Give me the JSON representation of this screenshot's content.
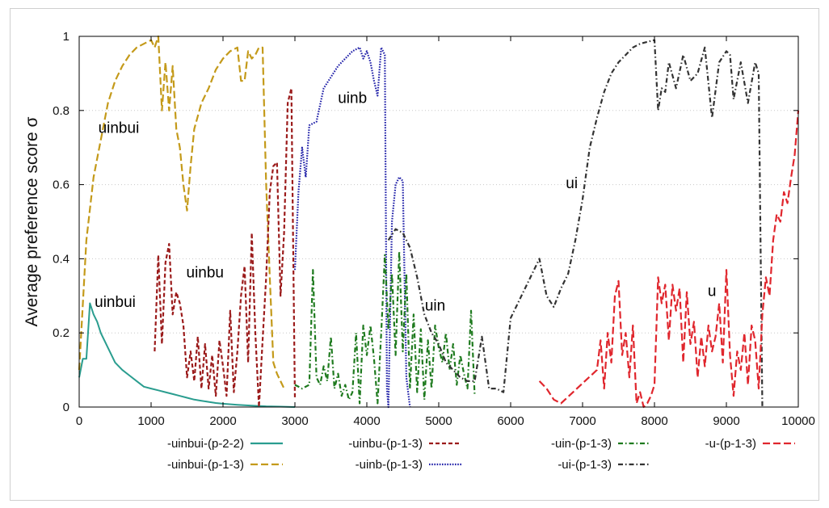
{
  "chart_data": {
    "type": "line",
    "title": "",
    "xlabel": "",
    "ylabel": "Average preference score σ",
    "xlim": [
      0,
      10000
    ],
    "ylim": [
      0,
      1
    ],
    "x_ticks": [
      0,
      1000,
      2000,
      3000,
      4000,
      5000,
      6000,
      7000,
      8000,
      9000,
      10000
    ],
    "y_ticks": [
      0,
      0.2,
      0.4,
      0.6,
      0.8,
      1
    ],
    "y_tick_labels": [
      "0",
      "0.2",
      "0.4",
      "0.6",
      "0.8",
      "1"
    ],
    "grid": "horizontal dotted",
    "legend_position": "bottom",
    "annotations": [
      {
        "text": "uinbui",
        "x": 550,
        "y": 0.74
      },
      {
        "text": "uinbui",
        "x": 500,
        "y": 0.27
      },
      {
        "text": "uinbu",
        "x": 1750,
        "y": 0.35
      },
      {
        "text": "uinb",
        "x": 3800,
        "y": 0.82
      },
      {
        "text": "uin",
        "x": 4950,
        "y": 0.26
      },
      {
        "text": "ui",
        "x": 6850,
        "y": 0.59
      },
      {
        "text": "u",
        "x": 8800,
        "y": 0.3
      }
    ],
    "series": [
      {
        "name": "-uinbui-(p-2-2)",
        "color": "#2a9d8f",
        "dash": "solid",
        "x": [
          0,
          50,
          100,
          150,
          200,
          250,
          300,
          400,
          500,
          600,
          700,
          800,
          900,
          1000,
          1100,
          1200,
          1300,
          1400,
          1500,
          1600,
          1700,
          1800,
          1900,
          2000,
          2200,
          2400,
          2600,
          2800,
          3000
        ],
        "y": [
          0.08,
          0.13,
          0.13,
          0.28,
          0.25,
          0.23,
          0.2,
          0.16,
          0.12,
          0.1,
          0.085,
          0.07,
          0.055,
          0.05,
          0.045,
          0.04,
          0.035,
          0.03,
          0.025,
          0.02,
          0.017,
          0.014,
          0.011,
          0.009,
          0.006,
          0.004,
          0.002,
          0.001,
          0
        ]
      },
      {
        "name": "-uinbui-(p-1-3)",
        "color": "#c49a1a",
        "dash": "long",
        "x": [
          0,
          100,
          200,
          300,
          400,
          500,
          600,
          700,
          800,
          900,
          1000,
          1050,
          1100,
          1150,
          1200,
          1250,
          1300,
          1350,
          1400,
          1450,
          1500,
          1550,
          1600,
          1700,
          1800,
          1900,
          2000,
          2100,
          2200,
          2250,
          2300,
          2350,
          2400,
          2450,
          2500,
          2550,
          2600,
          2650,
          2700,
          2750,
          2800,
          2850
        ],
        "y": [
          0.1,
          0.45,
          0.62,
          0.72,
          0.82,
          0.88,
          0.92,
          0.95,
          0.97,
          0.98,
          0.99,
          0.97,
          1.0,
          0.8,
          0.93,
          0.8,
          0.92,
          0.75,
          0.7,
          0.6,
          0.53,
          0.65,
          0.75,
          0.82,
          0.86,
          0.91,
          0.94,
          0.96,
          0.97,
          0.88,
          0.88,
          0.96,
          0.94,
          0.95,
          0.97,
          0.97,
          0.6,
          0.35,
          0.12,
          0.09,
          0.07,
          0.05
        ]
      },
      {
        "name": "-uinbu-(p-1-3)",
        "color": "#9b1b1b",
        "dash": "short",
        "x": [
          1050,
          1100,
          1150,
          1200,
          1250,
          1300,
          1350,
          1400,
          1450,
          1500,
          1550,
          1600,
          1650,
          1700,
          1750,
          1800,
          1850,
          1900,
          1950,
          2000,
          2050,
          2100,
          2150,
          2200,
          2250,
          2300,
          2350,
          2400,
          2450,
          2500,
          2550,
          2600,
          2650,
          2700,
          2750,
          2800,
          2850,
          2900,
          2950,
          3000
        ],
        "y": [
          0.15,
          0.41,
          0.17,
          0.39,
          0.44,
          0.25,
          0.31,
          0.28,
          0.22,
          0.08,
          0.15,
          0.07,
          0.19,
          0.05,
          0.17,
          0.05,
          0.14,
          0.03,
          0.18,
          0.11,
          0.03,
          0.26,
          0.04,
          0.15,
          0.3,
          0.38,
          0.12,
          0.47,
          0.2,
          0.0,
          0.18,
          0.35,
          0.58,
          0.65,
          0.66,
          0.3,
          0.47,
          0.82,
          0.86,
          0.02
        ]
      },
      {
        "name": "-uinb-(p-1-3)",
        "color": "#1f1fa8",
        "dash": "dotted",
        "x": [
          3000,
          3050,
          3100,
          3150,
          3200,
          3300,
          3400,
          3500,
          3600,
          3700,
          3800,
          3900,
          3950,
          4000,
          4050,
          4100,
          4150,
          4200,
          4250,
          4280,
          4300,
          4350,
          4400,
          4450,
          4500,
          4550,
          4600
        ],
        "y": [
          0.37,
          0.58,
          0.7,
          0.62,
          0.76,
          0.77,
          0.86,
          0.89,
          0.92,
          0.94,
          0.96,
          0.97,
          0.94,
          0.96,
          0.93,
          0.88,
          0.84,
          0.97,
          0.95,
          0.05,
          0.0,
          0.5,
          0.6,
          0.62,
          0.61,
          0.08,
          0.0
        ]
      },
      {
        "name": "-uin-(p-1-3)",
        "color": "#1e7a1e",
        "dash": "dashdot",
        "x": [
          3000,
          3100,
          3200,
          3250,
          3300,
          3350,
          3400,
          3450,
          3500,
          3550,
          3600,
          3650,
          3700,
          3750,
          3800,
          3850,
          3900,
          3950,
          4000,
          4050,
          4100,
          4150,
          4200,
          4250,
          4300,
          4350,
          4400,
          4450,
          4500,
          4550,
          4600,
          4650,
          4700,
          4750,
          4800,
          4850,
          4900,
          4950,
          5000,
          5050,
          5100,
          5150,
          5200,
          5250,
          5300,
          5350,
          5400,
          5450,
          5500
        ],
        "y": [
          0.06,
          0.05,
          0.06,
          0.37,
          0.08,
          0.06,
          0.11,
          0.07,
          0.19,
          0.05,
          0.09,
          0.03,
          0.06,
          0.02,
          0.04,
          0.2,
          0.01,
          0.22,
          0.14,
          0.22,
          0.13,
          0.01,
          0.2,
          0.41,
          0.21,
          0.36,
          0.14,
          0.42,
          0.15,
          0.36,
          0.05,
          0.25,
          0.04,
          0.21,
          0.02,
          0.18,
          0.05,
          0.22,
          0.16,
          0.12,
          0.2,
          0.1,
          0.17,
          0.06,
          0.14,
          0.09,
          0.05,
          0.26,
          0.03
        ]
      },
      {
        "name": "-ui-(p-1-3)",
        "color": "#333333",
        "dash": "dashdot",
        "x": [
          4300,
          4400,
          4500,
          4600,
          4700,
          4800,
          4900,
          5000,
          5100,
          5200,
          5300,
          5400,
          5500,
          5600,
          5700,
          5800,
          5900,
          6000,
          6100,
          6200,
          6300,
          6400,
          6500,
          6600,
          6700,
          6800,
          6900,
          7000,
          7100,
          7200,
          7300,
          7400,
          7500,
          7600,
          7700,
          7800,
          7900,
          8000,
          8050,
          8100,
          8150,
          8200,
          8300,
          8400,
          8500,
          8600,
          8700,
          8800,
          8900,
          9000,
          9050,
          9100,
          9200,
          9300,
          9400,
          9450,
          9500
        ],
        "y": [
          0.45,
          0.48,
          0.47,
          0.43,
          0.35,
          0.25,
          0.2,
          0.17,
          0.12,
          0.1,
          0.08,
          0.07,
          0.07,
          0.19,
          0.05,
          0.05,
          0.04,
          0.24,
          0.28,
          0.32,
          0.36,
          0.4,
          0.3,
          0.27,
          0.32,
          0.36,
          0.45,
          0.56,
          0.7,
          0.78,
          0.85,
          0.9,
          0.93,
          0.95,
          0.97,
          0.98,
          0.985,
          0.99,
          0.8,
          0.86,
          0.85,
          0.93,
          0.86,
          0.95,
          0.88,
          0.9,
          0.97,
          0.78,
          0.93,
          0.96,
          0.95,
          0.83,
          0.93,
          0.82,
          0.93,
          0.9,
          0.0
        ]
      },
      {
        "name": "-u-(p-1-3)",
        "color": "#e0262d",
        "dash": "long",
        "x": [
          6400,
          6500,
          6600,
          6700,
          7200,
          7250,
          7300,
          7350,
          7400,
          7450,
          7500,
          7550,
          7600,
          7650,
          7700,
          7750,
          7800,
          7850,
          7900,
          7950,
          8000,
          8050,
          8100,
          8150,
          8200,
          8250,
          8300,
          8350,
          8400,
          8450,
          8500,
          8550,
          8600,
          8650,
          8700,
          8750,
          8800,
          8850,
          8900,
          8950,
          9000,
          9050,
          9100,
          9150,
          9200,
          9250,
          9300,
          9350,
          9400,
          9450,
          9500,
          9550,
          9600,
          9650,
          9700,
          9750,
          9800,
          9850,
          9900,
          9950,
          10000
        ],
        "y": [
          0.07,
          0.05,
          0.02,
          0.01,
          0.1,
          0.18,
          0.05,
          0.2,
          0.12,
          0.3,
          0.34,
          0.14,
          0.2,
          0.08,
          0.22,
          0.01,
          0.04,
          0.0,
          0.01,
          0.03,
          0.06,
          0.35,
          0.28,
          0.33,
          0.18,
          0.33,
          0.26,
          0.32,
          0.12,
          0.31,
          0.17,
          0.23,
          0.08,
          0.19,
          0.11,
          0.22,
          0.15,
          0.19,
          0.28,
          0.12,
          0.37,
          0.14,
          0.03,
          0.15,
          0.1,
          0.2,
          0.06,
          0.22,
          0.18,
          0.05,
          0.25,
          0.35,
          0.3,
          0.45,
          0.52,
          0.5,
          0.58,
          0.55,
          0.62,
          0.68,
          0.8
        ]
      }
    ]
  }
}
